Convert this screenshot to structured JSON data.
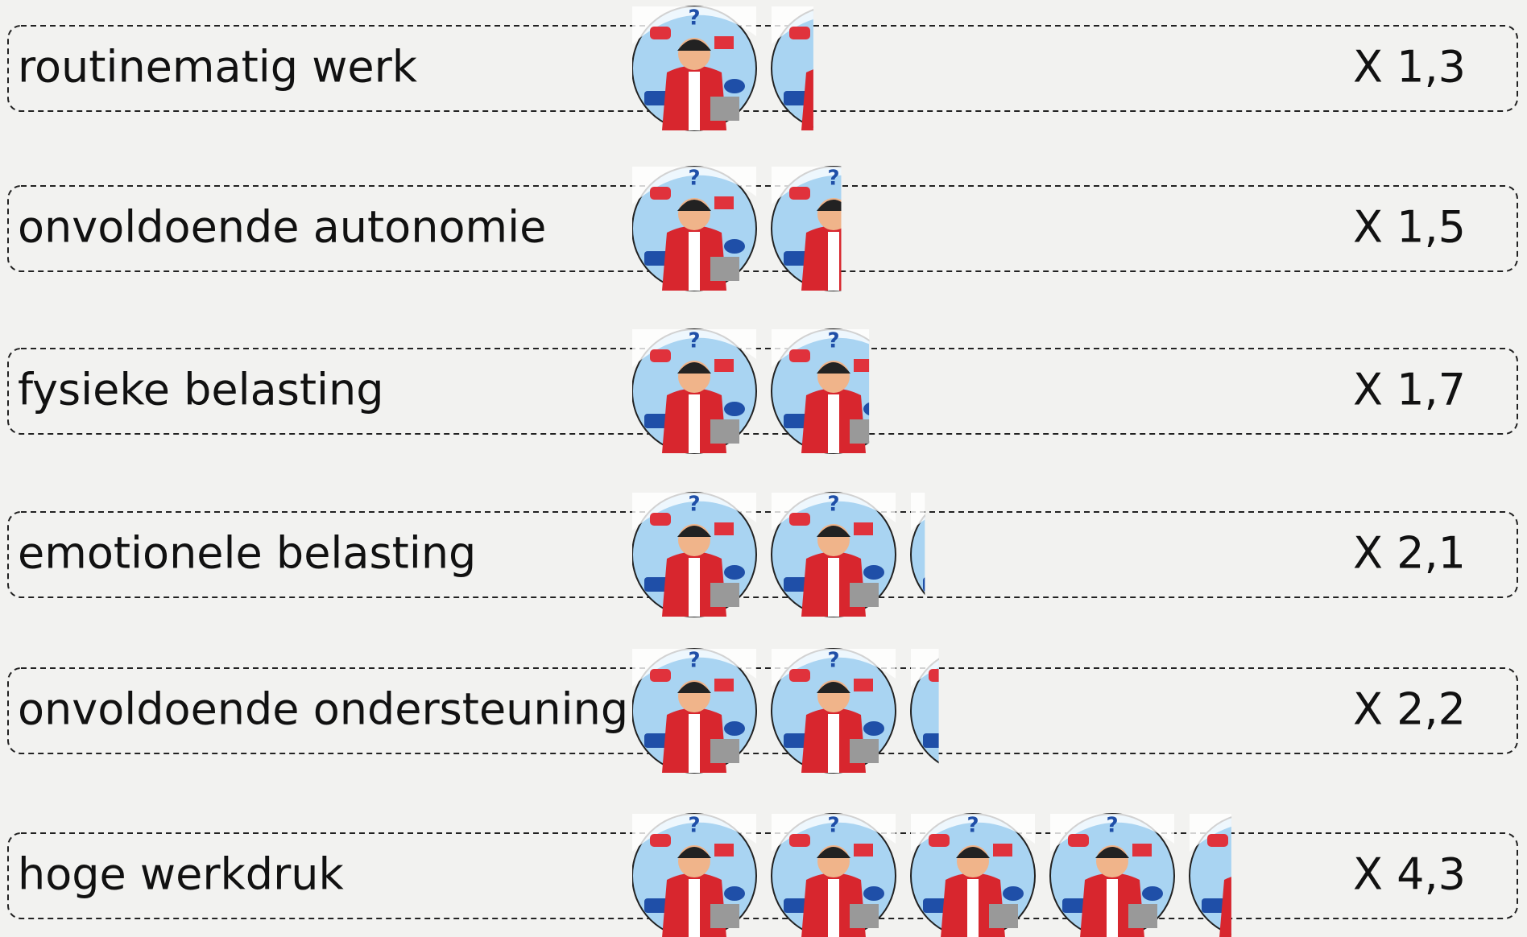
{
  "chart_data": {
    "type": "pictograph",
    "categories": [
      "routinematig werk",
      "onvoldoende autonomie",
      "fysieke belasting",
      "emotionele belasting",
      "onvoldoende ondersteuning",
      "hoge werkdruk"
    ],
    "values": [
      1.3,
      1.5,
      1.7,
      2.1,
      2.2,
      4.3
    ],
    "value_labels": [
      "X 1,3",
      "X 1,5",
      "X 1,7",
      "X 2,1",
      "X 2,2",
      "X 4,3"
    ]
  }
}
